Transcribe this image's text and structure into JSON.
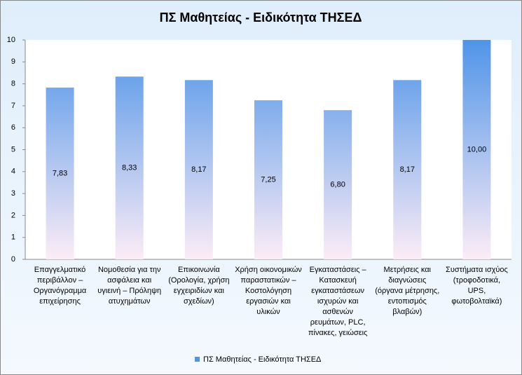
{
  "chart_data": {
    "type": "bar",
    "title": "ΠΣ Μαθητείας - Ειδικότητα ΤΗΣΕΔ",
    "categories": [
      "Επαγγελματικό περιβάλλον – Οργανόγραμμα επιχείρησης",
      "Νομοθεσία για την ασφάλεια και υγιεινή – Πρόληψη ατυχημάτων",
      "Επικοινωνία (Ορολογία, χρήση εγχειριδίων και σχεδίων)",
      "Χρήση οικονομικών παραστατικών – Κοστολόγηση εργασιών και υλικών",
      "Εγκαταστάσεις – Κατασκευή εγκαταστάσεων ισχυρών και ασθενών ρευμάτων, PLC, πίνακες, γειώσεις",
      "Μετρήσεις και διαγνώσεις (όργανα μέτρησης, εντοπισμός βλαβών)",
      "Συστήματα ισχύος (τροφοδοτικά, UPS, φωτοβολταϊκά)"
    ],
    "series": [
      {
        "name": "ΠΣ Μαθητείας - Ειδικότητα ΤΗΣΕΔ",
        "color": "#4f94e8",
        "values": [
          7.83,
          8.33,
          8.17,
          7.25,
          6.8,
          8.17,
          10
        ],
        "value_labels": [
          "7,83",
          "8,33",
          "8,17",
          "7,25",
          "6,80",
          "8,17",
          "10,00"
        ]
      }
    ],
    "ylim": [
      0,
      10
    ],
    "yticks": [
      0,
      1,
      2,
      3,
      4,
      5,
      6,
      7,
      8,
      9,
      10
    ],
    "grid": false,
    "legend": "bottom"
  }
}
